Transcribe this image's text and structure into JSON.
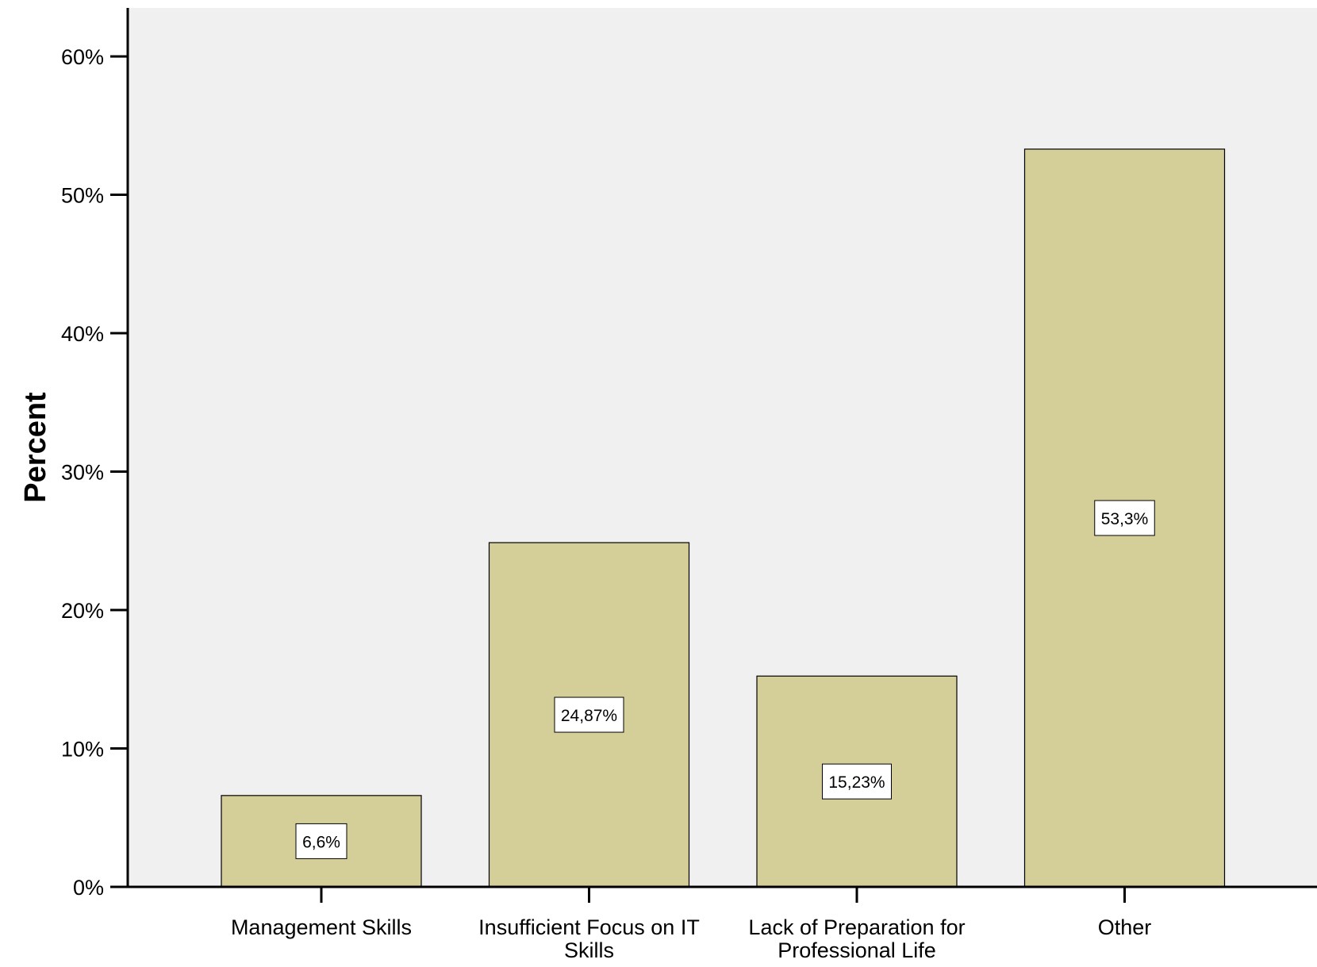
{
  "chart_data": {
    "type": "bar",
    "title": "",
    "xlabel": "",
    "ylabel": "Percent",
    "ylim": [
      0,
      63.5
    ],
    "yticks": [
      0,
      10,
      20,
      30,
      40,
      50,
      60
    ],
    "ytick_labels": [
      "0%",
      "10%",
      "20%",
      "30%",
      "40%",
      "50%",
      "60%"
    ],
    "categories": [
      [
        "Management Skills"
      ],
      [
        "Insufficient Focus on IT",
        "Skills"
      ],
      [
        "Lack of Preparation for",
        "Professional Life"
      ],
      [
        "Other"
      ]
    ],
    "values": [
      6.6,
      24.87,
      15.23,
      53.3
    ],
    "data_labels": [
      "6,6%",
      "24,87%",
      "15,23%",
      "53,3%"
    ],
    "grid": false,
    "legend": "none",
    "colors": {
      "plot_background": "#f0f0f0",
      "bar_fill": "#d4cf98",
      "bar_stroke": "#000000",
      "axis": "#000000",
      "label_box_fill": "#ffffff"
    }
  }
}
